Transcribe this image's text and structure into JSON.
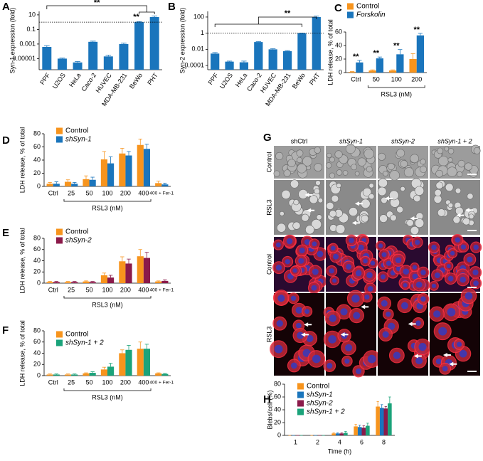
{
  "chart_data": [
    {
      "type": "bar",
      "panel": "A",
      "ylabel": "Syn-1 expression (fold)",
      "log": true,
      "color": "#1a75bc",
      "categories": [
        "PPF",
        "U2OS",
        "HeLa",
        "Caco-2",
        "HUVEC",
        "MDA-MB-231",
        "BeWo",
        "PHT"
      ],
      "values": [
        0.0004,
        1e-05,
        3e-06,
        0.002,
        2e-05,
        0.001,
        1,
        5
      ],
      "errors": [
        0.0002,
        2e-06,
        1e-06,
        0.0005,
        1e-05,
        0.0004,
        0.2,
        2
      ],
      "ylim": [
        3e-07,
        30
      ],
      "yticks": [
        1e-05,
        0.001,
        0.1,
        10
      ],
      "reference_line": 1,
      "annotations": [
        "**",
        "**"
      ]
    },
    {
      "type": "bar",
      "panel": "B",
      "ylabel": "Syn-2 expression (fold)",
      "log": true,
      "color": "#1a75bc",
      "categories": [
        "PPF",
        "U2OS",
        "HeLa",
        "Caco-2",
        "HUVEC",
        "MDA-MB-231",
        "BeWo",
        "PHT"
      ],
      "values": [
        0.003,
        0.0003,
        0.00025,
        0.08,
        0.01,
        0.006,
        1,
        100
      ],
      "errors": [
        0.001,
        5e-05,
        0.0001,
        0.01,
        0.002,
        0.001,
        0.05,
        30
      ],
      "ylim": [
        3e-05,
        500
      ],
      "yticks": [
        0.0001,
        0.01,
        1,
        100
      ],
      "reference_line": 1,
      "annotations": [
        "**"
      ]
    },
    {
      "type": "bar",
      "panel": "C",
      "ylabel": "LDH release, % of total",
      "xlabel": "RSL3 (nM)",
      "categories": [
        "Ctrl",
        "50",
        "100",
        "200"
      ],
      "series": [
        {
          "name": "Control",
          "color": "#f7941d",
          "values": [
            1,
            3,
            3,
            20
          ],
          "errors": [
            0.5,
            1,
            1,
            8
          ]
        },
        {
          "name": "Forskolin",
          "color": "#1a75bc",
          "values": [
            15,
            21,
            27,
            55
          ],
          "errors": [
            3,
            2,
            7,
            3
          ]
        }
      ],
      "ylim": [
        0,
        60
      ],
      "yticks": [
        0,
        20,
        40,
        60
      ],
      "annotations": [
        "**",
        "**",
        "**",
        "**"
      ]
    },
    {
      "type": "bar",
      "panel": "D",
      "ylabel": "LDH release, % of total",
      "xlabel": "RSL3 (nM)",
      "categories": [
        "Ctrl",
        "25",
        "50",
        "100",
        "200",
        "400",
        "400 + Fer-1"
      ],
      "series": [
        {
          "name": "Control",
          "color": "#f7941d",
          "values": [
            4,
            7,
            11,
            41,
            50,
            63,
            5
          ],
          "errors": [
            2,
            3,
            5,
            12,
            8,
            9,
            3
          ]
        },
        {
          "name": "shSyn-1",
          "color": "#1a75bc",
          "values": [
            4,
            4,
            10,
            35,
            47,
            57,
            3
          ],
          "errors": [
            3,
            2,
            4,
            10,
            6,
            7,
            2
          ]
        }
      ],
      "ylim": [
        0,
        80
      ],
      "yticks": [
        0,
        20,
        40,
        60,
        80
      ]
    },
    {
      "type": "bar",
      "panel": "E",
      "ylabel": "LDH release, % of total",
      "xlabel": "RSL3 (nM)",
      "categories": [
        "Ctrl",
        "25",
        "50",
        "100",
        "200",
        "400",
        "400 + Fer-1"
      ],
      "series": [
        {
          "name": "Control",
          "color": "#f7941d",
          "values": [
            2,
            2,
            3,
            14,
            39,
            48,
            3
          ],
          "errors": [
            1,
            1,
            1,
            4,
            8,
            12,
            1
          ]
        },
        {
          "name": "shSyn-2",
          "color": "#8b1a4a",
          "values": [
            2,
            2,
            2,
            10,
            35,
            45,
            4
          ],
          "errors": [
            1,
            1,
            1,
            4,
            8,
            10,
            2
          ]
        }
      ],
      "ylim": [
        0,
        80
      ],
      "yticks": [
        0,
        20,
        40,
        60,
        80
      ]
    },
    {
      "type": "bar",
      "panel": "F",
      "ylabel": "LDH release, % of total",
      "xlabel": "RSL3 (nM)",
      "categories": [
        "Ctrl",
        "25",
        "50",
        "100",
        "200",
        "400",
        "400 + Fer-1"
      ],
      "series": [
        {
          "name": "Control",
          "color": "#f7941d",
          "values": [
            2,
            2,
            4,
            11,
            40,
            48,
            4
          ],
          "errors": [
            1,
            1,
            1,
            4,
            6,
            12,
            1
          ]
        },
        {
          "name": "shSyn-1 + 2",
          "color": "#1aa37a",
          "values": [
            2,
            2,
            5,
            16,
            46,
            48,
            3
          ],
          "errors": [
            1,
            1,
            2,
            6,
            8,
            8,
            1
          ]
        }
      ],
      "ylim": [
        0,
        80
      ],
      "yticks": [
        0,
        20,
        40,
        60,
        80
      ]
    },
    {
      "type": "bar",
      "panel": "H",
      "ylabel": "Blebs/cell (%)",
      "xlabel": "Time (h)",
      "categories": [
        "1",
        "2",
        "4",
        "6",
        "8"
      ],
      "series": [
        {
          "name": "Control",
          "color": "#f7941d",
          "values": [
            0,
            0,
            3,
            14,
            45
          ],
          "errors": [
            0,
            0,
            1,
            3,
            8
          ]
        },
        {
          "name": "shSyn-1",
          "color": "#1a75bc",
          "values": [
            0,
            0,
            3,
            13,
            43
          ],
          "errors": [
            0,
            0,
            1,
            3,
            5
          ]
        },
        {
          "name": "shSyn-2",
          "color": "#8b1a4a",
          "values": [
            0,
            0,
            3,
            12,
            42
          ],
          "errors": [
            0,
            0,
            1,
            3,
            3
          ]
        },
        {
          "name": "shSyn-1 + 2",
          "color": "#1aa37a",
          "values": [
            0,
            0,
            4,
            15,
            50
          ],
          "errors": [
            0,
            0,
            2,
            4,
            10
          ]
        }
      ],
      "ylim": [
        0,
        80
      ],
      "yticks": [
        0,
        20,
        40,
        60,
        80
      ]
    }
  ],
  "panel_g": {
    "panel": "G",
    "columns": [
      "shCtrl",
      "shSyn-1",
      "shSyn-2",
      "shSyn-1 + 2"
    ],
    "rows": [
      "Control",
      "RSL3",
      "Control",
      "RSL3"
    ]
  }
}
